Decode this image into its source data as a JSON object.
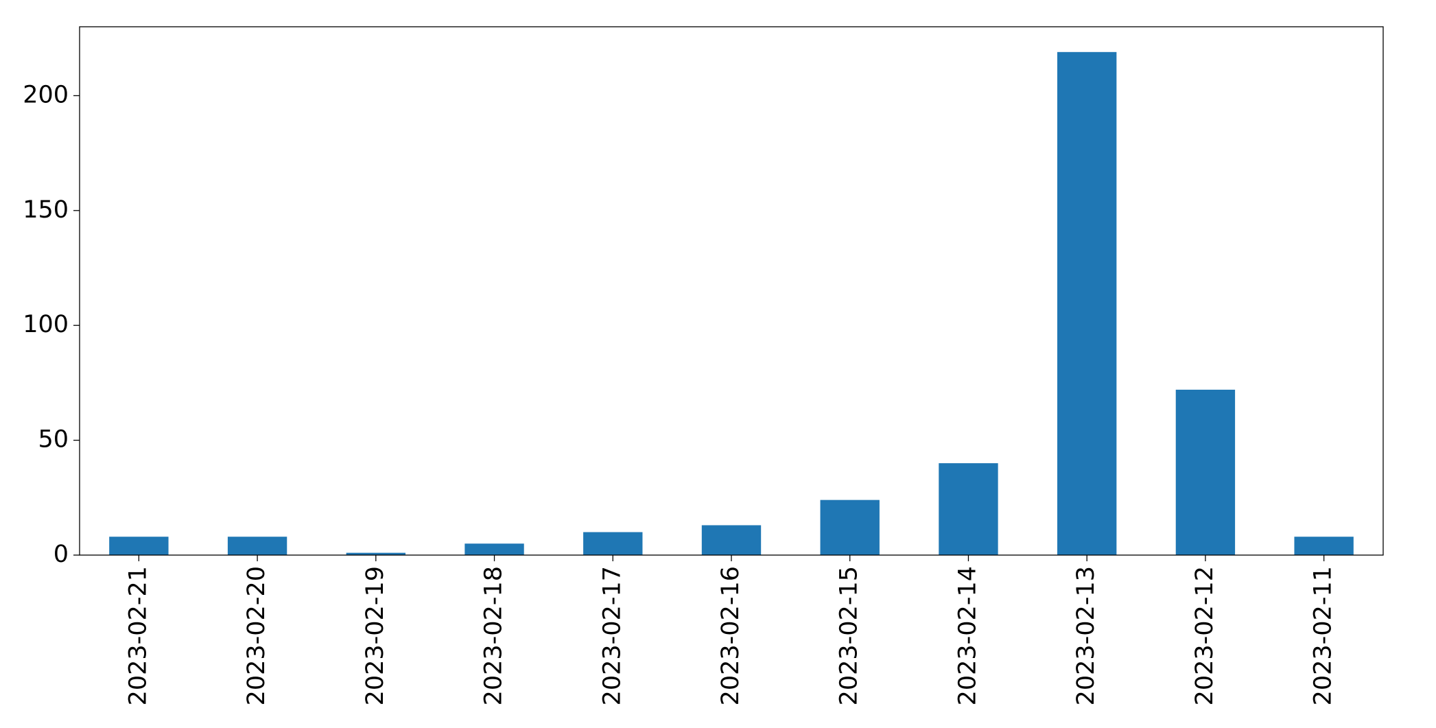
{
  "chart_data": {
    "type": "bar",
    "categories": [
      "2023-02-21",
      "2023-02-20",
      "2023-02-19",
      "2023-02-18",
      "2023-02-17",
      "2023-02-16",
      "2023-02-15",
      "2023-02-14",
      "2023-02-13",
      "2023-02-12",
      "2023-02-11"
    ],
    "values": [
      8,
      8,
      1,
      5,
      10,
      13,
      24,
      40,
      219,
      72,
      8
    ],
    "color": "#1f77b4",
    "ylim": [
      0,
      230
    ],
    "yticks": [
      0,
      50,
      100,
      150,
      200
    ],
    "grid": false
  }
}
